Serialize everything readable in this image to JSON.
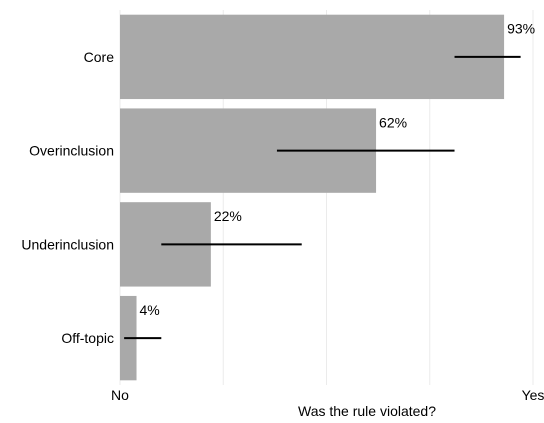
{
  "chart_data": {
    "type": "bar",
    "orientation": "horizontal",
    "categories": [
      "Core",
      "Overinclusion",
      "Underinclusion",
      "Off-topic"
    ],
    "values": [
      0.93,
      0.62,
      0.22,
      0.04
    ],
    "value_labels": [
      "93%",
      "62%",
      "22%",
      "4%"
    ],
    "error_bars": [
      [
        0.81,
        0.97
      ],
      [
        0.38,
        0.81
      ],
      [
        0.1,
        0.44
      ],
      [
        0.01,
        0.1
      ]
    ],
    "xlabel": "Was the rule violated?",
    "ylabel": "",
    "xlim": [
      0,
      1
    ],
    "x_tick_labels": [
      "No",
      "Yes"
    ],
    "grid": true,
    "colors": {
      "bar": "#a9a9a9",
      "error_bar": "#000000",
      "grid": "#ebebeb"
    }
  }
}
